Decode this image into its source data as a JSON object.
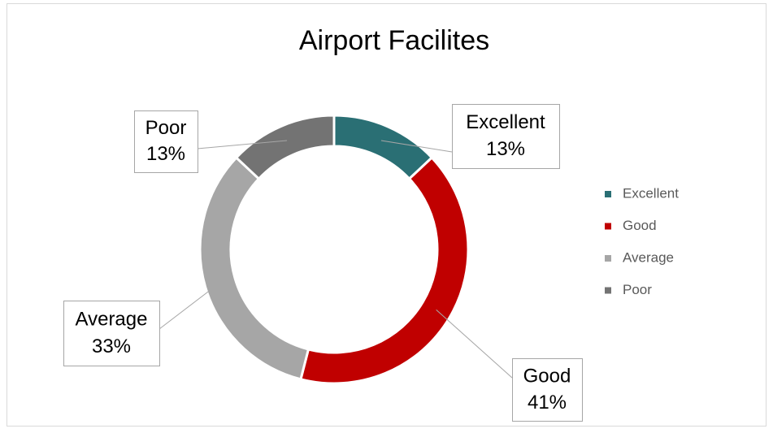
{
  "chart_data": {
    "type": "donut",
    "title": "Airport Facilites",
    "categories": [
      "Excellent",
      "Good",
      "Average",
      "Poor"
    ],
    "values": [
      13,
      41,
      33,
      13
    ],
    "value_labels": [
      "13%",
      "41%",
      "33%",
      "13%"
    ],
    "colors": [
      "#2a6f74",
      "#c00000",
      "#a6a6a6",
      "#737373"
    ],
    "legend": "right"
  }
}
